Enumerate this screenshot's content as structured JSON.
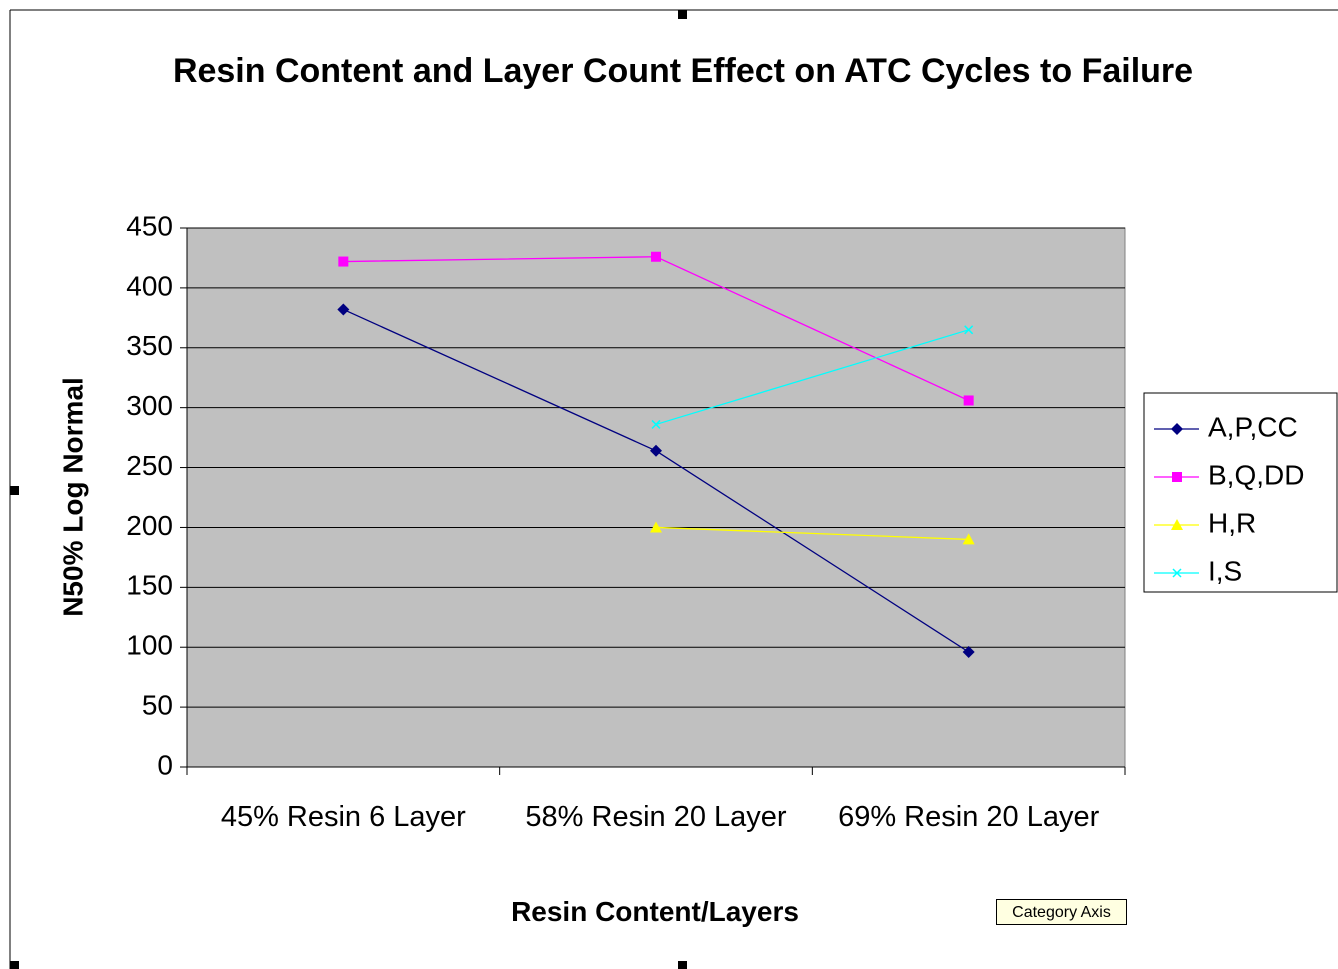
{
  "chart_data": {
    "type": "line",
    "title": "Resin Content and Layer Count Effect on ATC Cycles to Failure",
    "x_label": "Resin Content/Layers",
    "y_label": "N50% Log Normal",
    "categories": [
      "45% Resin 6 Layer",
      "58% Resin 20 Layer",
      "69% Resin 20 Layer"
    ],
    "series": [
      {
        "name": "A,P,CC",
        "color": "#000080",
        "marker": "diamond",
        "values": [
          382,
          264,
          96
        ]
      },
      {
        "name": "B,Q,DD",
        "color": "#ff00ff",
        "marker": "square",
        "values": [
          422,
          426,
          306
        ]
      },
      {
        "name": "H,R",
        "color": "#ffff00",
        "marker": "triangle",
        "values": [
          null,
          200,
          190
        ]
      },
      {
        "name": "I,S",
        "color": "#00ffff",
        "marker": "x",
        "values": [
          null,
          286,
          365
        ]
      }
    ],
    "ylim": [
      0,
      450
    ],
    "yticks": [
      0,
      50,
      100,
      150,
      200,
      250,
      300,
      350,
      400,
      450
    ],
    "grid": true,
    "legend": "right",
    "tooltip": "Category Axis"
  }
}
